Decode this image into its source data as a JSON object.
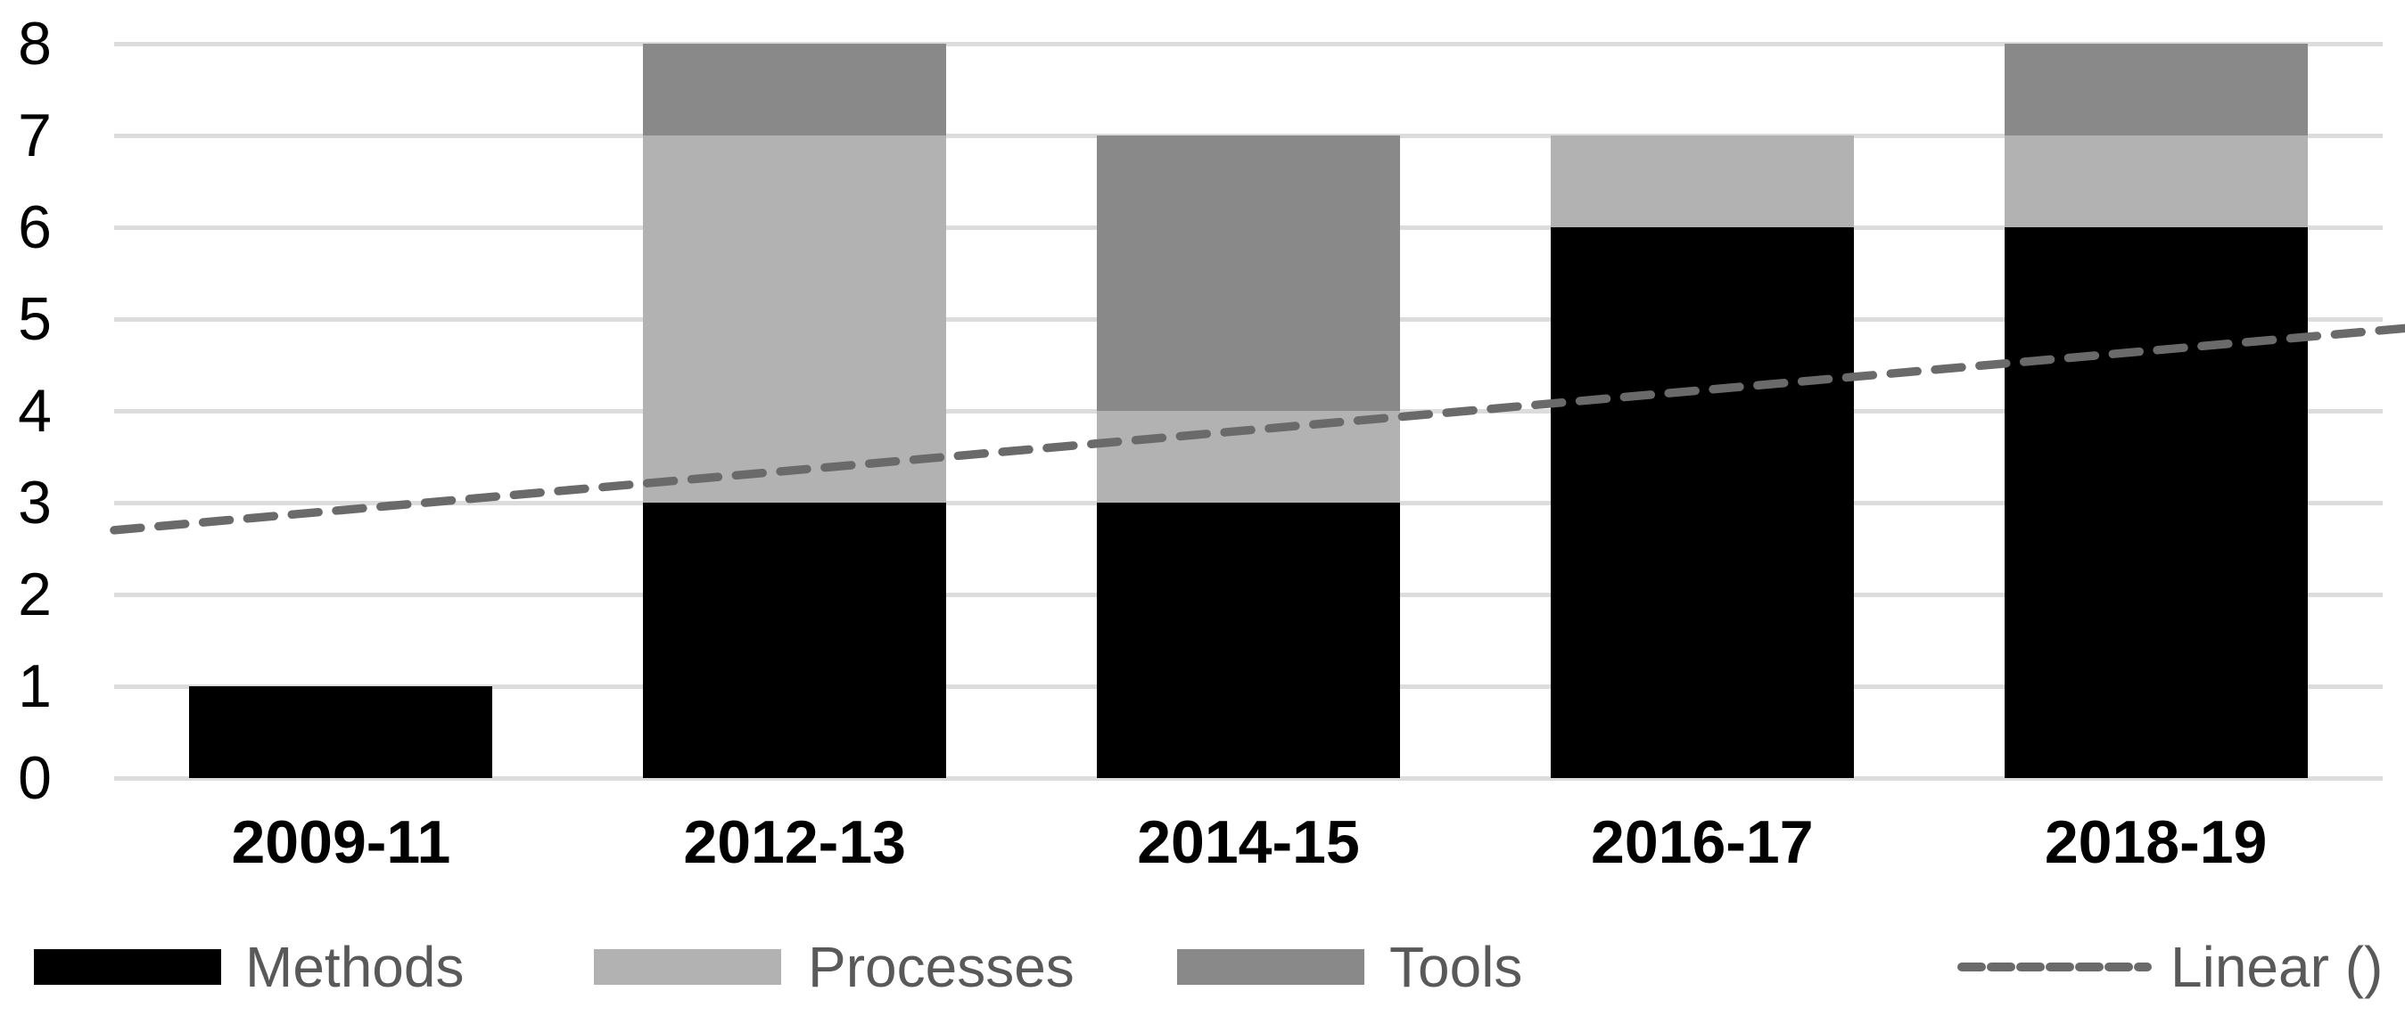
{
  "chart_data": {
    "type": "bar",
    "stacked": true,
    "title": "",
    "xlabel": "",
    "ylabel": "",
    "categories": [
      "2009-11",
      "2012-13",
      "2014-15",
      "2016-17",
      "2018-19"
    ],
    "series": [
      {
        "name": "Methods",
        "color": "#000000",
        "values": [
          1,
          3,
          3,
          6,
          6
        ]
      },
      {
        "name": "Processes",
        "color": "#b2b2b2",
        "values": [
          0,
          4,
          1,
          1,
          1
        ]
      },
      {
        "name": "Tools",
        "color": "#898989",
        "values": [
          0,
          1,
          3,
          0,
          1
        ]
      }
    ],
    "totals": [
      1,
      8,
      7,
      7,
      8
    ],
    "trendline": {
      "name": "Linear ()",
      "style": "dashed",
      "color": "#6a6a6a",
      "start_value": 2.7,
      "end_value": 4.9
    },
    "ylim": [
      0,
      8
    ],
    "yticks": [
      0,
      1,
      2,
      3,
      4,
      5,
      6,
      7,
      8
    ],
    "grid": "horizontal",
    "gridline_color": "#dcdcdc",
    "legend_position": "bottom"
  },
  "legend": {
    "items": [
      {
        "label": "Methods",
        "swatch": "fill",
        "color": "#000000"
      },
      {
        "label": "Processes",
        "swatch": "fill",
        "color": "#b2b2b2"
      },
      {
        "label": "Tools",
        "swatch": "fill",
        "color": "#898989"
      },
      {
        "label": "Linear ()",
        "swatch": "dashed-line",
        "color": "#6a6a6a"
      }
    ],
    "text_color": "#595959"
  },
  "axis_text_color": "#000000"
}
